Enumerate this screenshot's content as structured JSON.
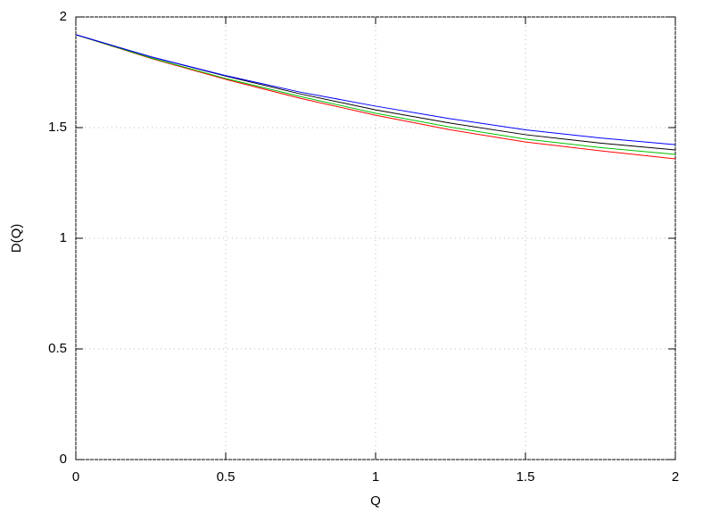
{
  "chart_data": {
    "type": "line",
    "xlabel": "Q",
    "ylabel": "D(Q)",
    "x": [
      0,
      0.25,
      0.5,
      0.75,
      1,
      1.25,
      1.5,
      1.75,
      2
    ],
    "series": [
      {
        "color": "#ff0000",
        "values": [
          1.92,
          1.813,
          1.718,
          1.632,
          1.556,
          1.49,
          1.435,
          1.395,
          1.359
        ]
      },
      {
        "color": "#00c000",
        "values": [
          1.92,
          1.815,
          1.722,
          1.64,
          1.565,
          1.502,
          1.448,
          1.41,
          1.379
        ]
      },
      {
        "color": "#000000",
        "values": [
          1.92,
          1.82,
          1.733,
          1.652,
          1.58,
          1.52,
          1.468,
          1.43,
          1.399
        ]
      },
      {
        "color": "#0000ff",
        "values": [
          1.92,
          1.82,
          1.735,
          1.66,
          1.597,
          1.54,
          1.49,
          1.453,
          1.423
        ]
      }
    ],
    "xlim": [
      0,
      2
    ],
    "xticks": [
      0,
      0.5,
      1,
      1.5,
      2
    ],
    "ylim": [
      0,
      2
    ],
    "yticks": [
      0,
      0.5,
      1,
      1.5,
      2
    ],
    "grid": true
  }
}
